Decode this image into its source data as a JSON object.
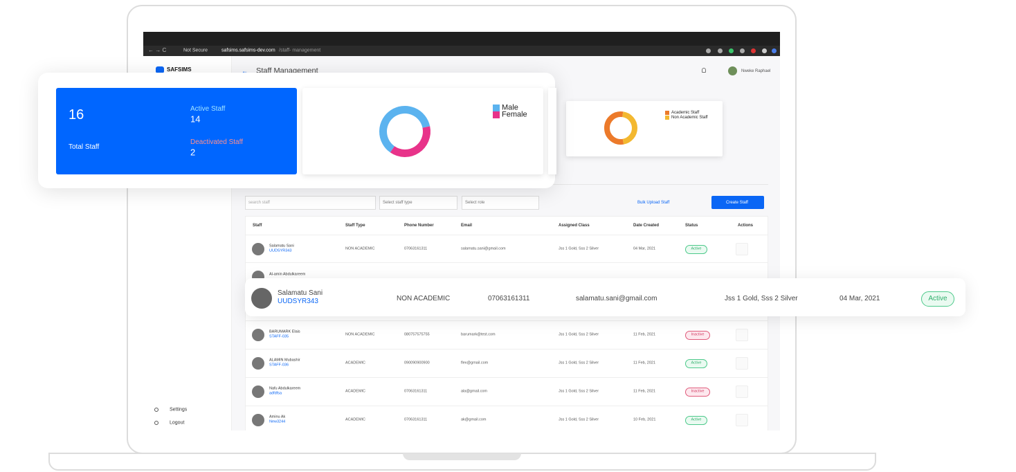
{
  "browser": {
    "security": "Not Secure",
    "url_host": "safsims.safsims-dev.com",
    "url_path": "/staff- management"
  },
  "app": {
    "logo": "SAFSIMS",
    "page_title": "Staff Management",
    "user": "Nweke Raphael",
    "sidebar": [
      "Settings",
      "Logout"
    ]
  },
  "summary": {
    "total": 16,
    "total_label": "Total Staff",
    "active_label": "Active Staff",
    "active": 14,
    "deactivated_label": "Deactivated Staff",
    "deactivated": 2
  },
  "gender_chart": {
    "type": "pie",
    "categories": [
      "Male",
      "Female"
    ],
    "values": [
      62,
      38
    ],
    "colors": [
      "#5bb3ef",
      "#e8338a"
    ]
  },
  "staff_type_chart": {
    "type": "pie",
    "categories": [
      "Academic Staff",
      "Non Academic Staff"
    ],
    "values": [
      55,
      45
    ],
    "colors": [
      "#ec7a2a",
      "#f3b830"
    ]
  },
  "toolbar": {
    "search_placeholder": "search staff",
    "staff_type_placeholder": "Select staff type",
    "role_placeholder": "Select role",
    "bulk_upload": "Bulk Upload Staff",
    "create": "Create Staff"
  },
  "table": {
    "columns": [
      "Staff",
      "Staff Type",
      "Phone Number",
      "Email",
      "Assigned Class",
      "Date Created",
      "Status",
      "Actions"
    ],
    "rows": [
      [
        "Salamatu Sani",
        "UUDSYR343",
        "NON ACADEMIC",
        "07063161311",
        "salamatu.sani@gmail.com",
        "Jss 1 Gold, Sss 2 Silver",
        "04 Mar, 2021",
        "Active"
      ],
      [
        "Al-amin Abdulkareem"
      ],
      [
        "BARUMARK Elais",
        "STAFF-035",
        "NON ACADEMIC",
        "080757575755",
        "barumark@test.com",
        "Jss 1 Gold, Sss 2 Silver",
        "11 Feb, 2021",
        "Inactive"
      ],
      [
        "ALAMIN Mubashir",
        "STAFF-036",
        "ACADEMIC",
        "090090900900",
        "flex@gmail.com",
        "Jss 1 Gold, Sss 2 Silver",
        "11 Feb, 2021",
        "Active"
      ],
      [
        "Nafu Abdulkareem",
        "adfdfsa",
        "ACADEMIC",
        "07063161311",
        "ala@gmail.com",
        "Jss 1 Gold, Sss 2 Silver",
        "11 Feb, 2021",
        "Inactive"
      ],
      [
        "Aminu Ak",
        "New3244",
        "ACADEMIC",
        "07063161311",
        "ak@gmail.com",
        "Jss 1 Gold, Sss 2 Silver",
        "10 Feb, 2021",
        "Active"
      ]
    ]
  },
  "highlight": [
    "Salamatu Sani",
    "UUDSYR343",
    "NON ACADEMIC",
    "07063161311",
    "salamatu.sani@gmail.com",
    "Jss 1 Gold, Sss 2 Silver",
    "04 Mar, 2021",
    "Active"
  ]
}
